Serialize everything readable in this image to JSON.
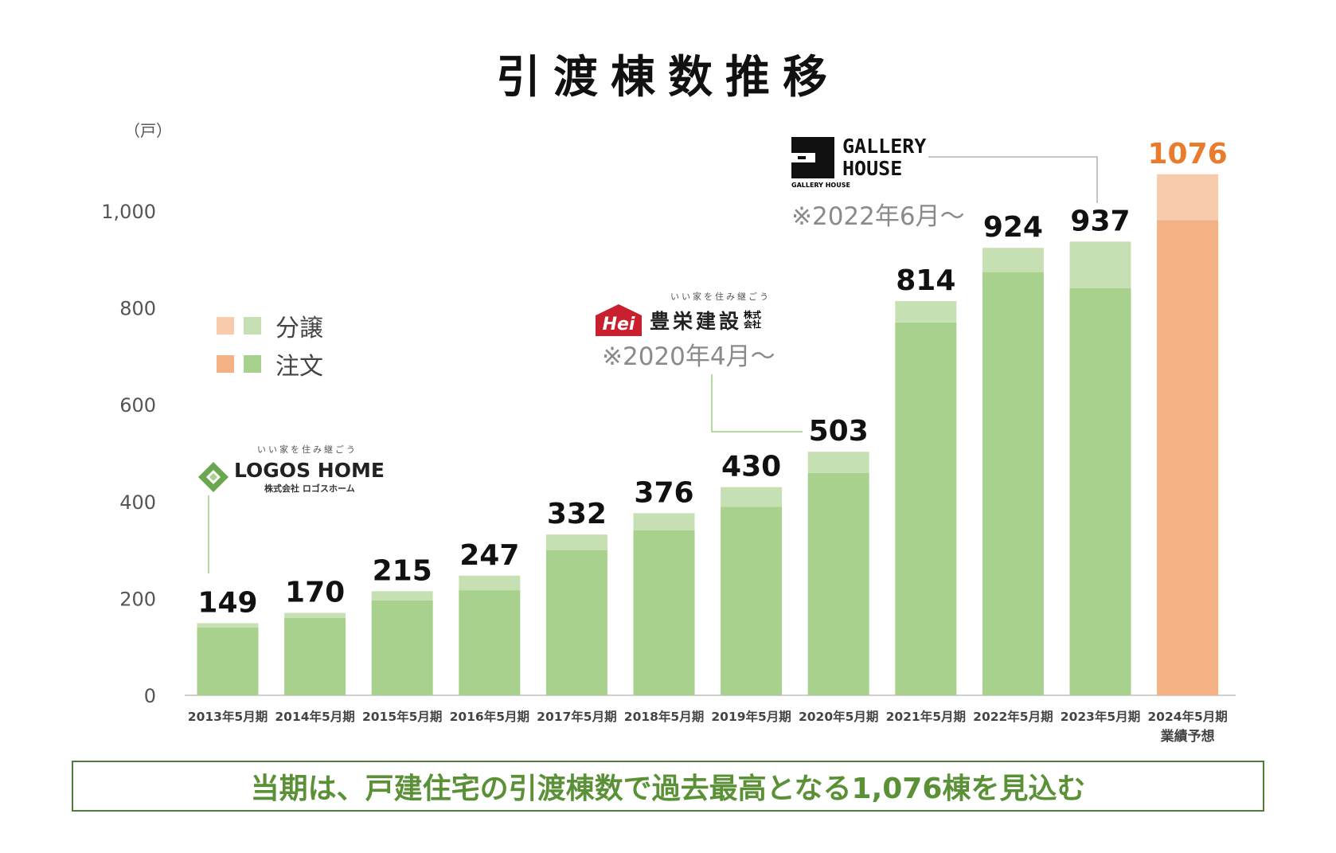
{
  "chart_data": {
    "type": "bar",
    "stacked": true,
    "title": "引渡棟数推移",
    "ylabel": "（戸）",
    "ylim": [
      0,
      1100
    ],
    "yticks": [
      "0",
      "200",
      "400",
      "600",
      "800",
      "1,000"
    ],
    "ytick_values": [
      0,
      200,
      400,
      600,
      800,
      1000
    ],
    "categories": [
      "2013年5月期",
      "2014年5月期",
      "2015年5月期",
      "2016年5月期",
      "2017年5月期",
      "2018年5月期",
      "2019年5月期",
      "2020年5月期",
      "2021年5月期",
      "2022年5月期",
      "2023年5月期",
      "2024年5月期"
    ],
    "category_sublabels": [
      "",
      "",
      "",
      "",
      "",
      "",
      "",
      "",
      "",
      "",
      "",
      "業績予想"
    ],
    "totals": [
      149,
      170,
      215,
      247,
      332,
      376,
      430,
      503,
      814,
      924,
      937,
      1076
    ],
    "total_labels": [
      "149",
      "170",
      "215",
      "247",
      "332",
      "376",
      "430",
      "503",
      "814",
      "924",
      "937",
      "1076"
    ],
    "series": [
      {
        "name": "注文",
        "values": [
          140,
          160,
          196,
          217,
          300,
          341,
          389,
          459,
          770,
          874,
          841,
          981
        ]
      },
      {
        "name": "分譲",
        "values": [
          9,
          10,
          19,
          30,
          32,
          35,
          41,
          44,
          44,
          50,
          96,
          95
        ]
      }
    ],
    "forecast_index": 11,
    "colors": {
      "order_green": "#a8d18d",
      "sale_green": "#c6e0b4",
      "order_orange": "#f4b183",
      "sale_orange": "#f8cbad",
      "forecast_label": "#e97b2c"
    },
    "grid": false
  },
  "legend": {
    "items": [
      {
        "label": "分譲",
        "swatch_orange": "#f8cbad",
        "swatch_green": "#c6e0b4"
      },
      {
        "label": "注文",
        "swatch_orange": "#f4b183",
        "swatch_green": "#a8d18d"
      }
    ]
  },
  "logos": {
    "logos_home": {
      "tagline": "いい家を住み継ごう",
      "name": "LOGOS HOME",
      "sub": "株式会社 ロゴスホーム"
    },
    "hoei": {
      "tagline": "いい家を住み継ごう",
      "mark": "Hei",
      "name": "豊栄建設",
      "suffix": "株式会社",
      "note": "※2020年4月～"
    },
    "gallery": {
      "name_line1": "GALLERY",
      "name_line2": "HOUSE",
      "small": "GALLERY HOUSE",
      "note": "※2022年6月～"
    }
  },
  "banner": {
    "text": "当期は、戸建住宅の引渡棟数で過去最高となる1,076棟を見込む"
  }
}
